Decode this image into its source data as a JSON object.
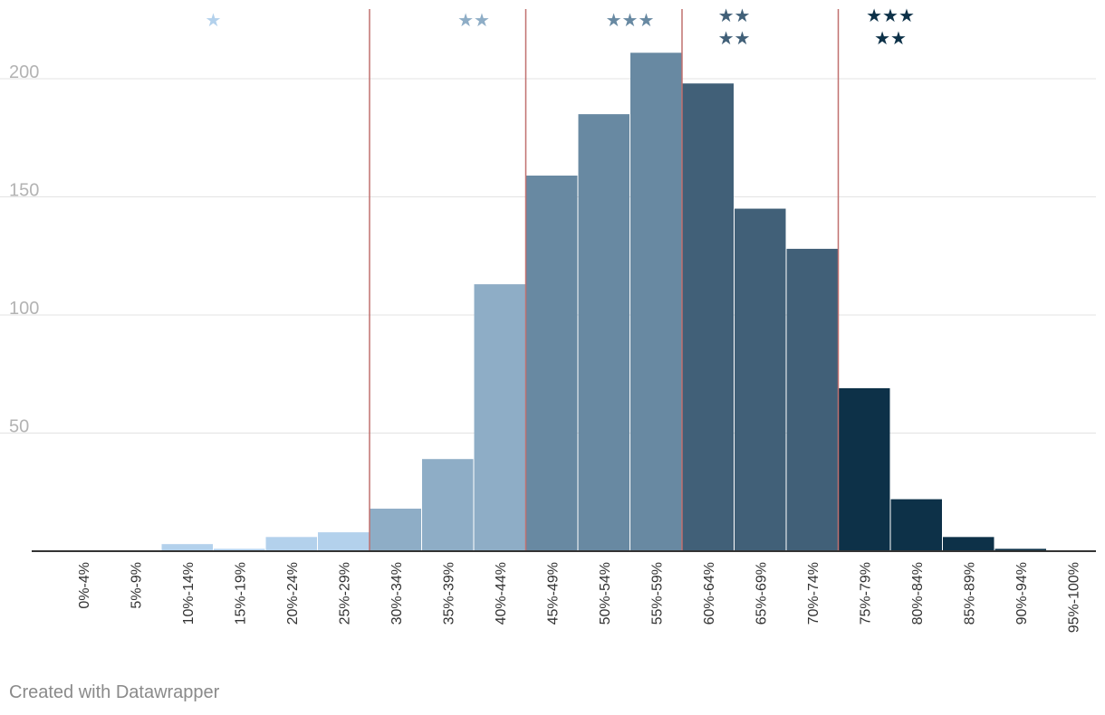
{
  "chart_data": {
    "type": "bar",
    "categories": [
      "0%-4%",
      "5%-9%",
      "10%-14%",
      "15%-19%",
      "20%-24%",
      "25%-29%",
      "30%-34%",
      "35%-39%",
      "40%-44%",
      "45%-49%",
      "50%-54%",
      "55%-59%",
      "60%-64%",
      "65%-69%",
      "70%-74%",
      "75%-79%",
      "80%-84%",
      "85%-89%",
      "90%-94%",
      "95%-100%"
    ],
    "values": [
      0,
      0,
      3,
      1,
      6,
      8,
      18,
      39,
      113,
      159,
      185,
      211,
      198,
      145,
      128,
      69,
      22,
      6,
      1,
      0
    ],
    "bar_groups": [
      0,
      0,
      1,
      1,
      1,
      1,
      2,
      2,
      2,
      3,
      3,
      3,
      4,
      4,
      4,
      5,
      5,
      5,
      5,
      5
    ],
    "group_colors": [
      "#b3d1ec",
      "#b3d1ec",
      "#8eadc6",
      "#6889a2",
      "#416078",
      "#0d3148"
    ],
    "yticks": [
      50,
      100,
      150,
      200
    ],
    "ylim": [
      0,
      230
    ],
    "dividers_after_category": [
      "25%-29%",
      "40%-44%",
      "55%-59%",
      "70%-74%"
    ],
    "divider_color": "#c0706f",
    "grid": true,
    "star_labels": [
      {
        "lines": [
          "★"
        ],
        "color": "#b3d1ec",
        "between": [
          "10%-14%",
          "15%-19%"
        ]
      },
      {
        "lines": [
          "★★"
        ],
        "color": "#8eadc6",
        "between": [
          "35%-39%",
          "40%-44%"
        ]
      },
      {
        "lines": [
          "★★★"
        ],
        "color": "#6889a2",
        "between": [
          "50%-54%",
          "55%-59%"
        ]
      },
      {
        "lines": [
          "★★",
          "★★"
        ],
        "color": "#416078",
        "between": [
          "60%-64%",
          "65%-69%"
        ]
      },
      {
        "lines": [
          "★★★",
          "★★"
        ],
        "color": "#0d3148",
        "between": [
          "75%-79%",
          "80%-84%"
        ]
      }
    ],
    "title": "",
    "xlabel": "",
    "ylabel": ""
  },
  "footer": {
    "credit": "Created with Datawrapper"
  }
}
